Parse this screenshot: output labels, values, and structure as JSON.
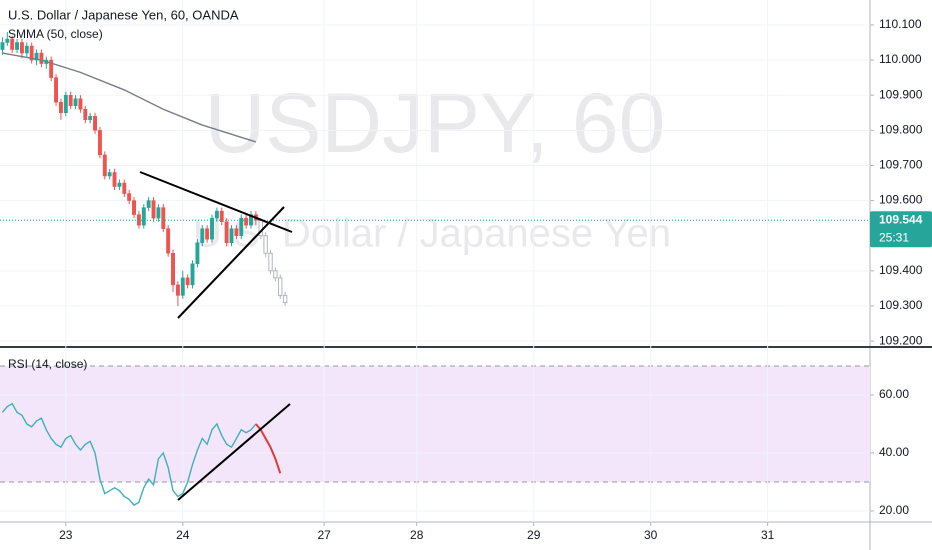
{
  "chart_data": [
    {
      "type": "candlestick",
      "title": "U.S. Dollar / Japanese Yen, 60, OANDA",
      "watermark": "USDJPY, 60",
      "watermark_subtitle": "U.S. Dollar / Japanese Yen",
      "xlim": [
        -0.5,
        178
      ],
      "ylim": [
        109.186,
        110.171
      ],
      "yticks": [
        {
          "value": 110.1,
          "label": "110.100"
        },
        {
          "value": 110.0,
          "label": "110.000"
        },
        {
          "value": 109.9,
          "label": "109.900"
        },
        {
          "value": 109.8,
          "label": "109.800"
        },
        {
          "value": 109.7,
          "label": "109.700"
        },
        {
          "value": 109.6,
          "label": "109.600"
        },
        {
          "value": 109.4,
          "label": "109.400"
        },
        {
          "value": 109.3,
          "label": "109.300"
        },
        {
          "value": 109.2,
          "label": "109.200"
        }
      ],
      "grid": true,
      "color_up": "#26a69a",
      "color_down": "#ef5350",
      "last_price": {
        "value": 109.544,
        "label": "109.544"
      },
      "countdown": "25:31",
      "candles": [
        {
          "open": [
            110.03,
            110.05,
            110.06,
            110.03,
            110.05,
            110.02,
            110.04,
            110.0,
            110.02,
            109.99,
            110.0,
            109.95,
            109.88,
            109.85,
            109.9,
            109.87,
            109.89,
            109.86,
            109.83,
            109.84,
            109.8,
            109.73,
            109.67,
            109.68,
            109.64,
            109.65,
            109.62,
            109.6,
            109.56,
            109.53,
            109.58,
            109.6,
            109.55,
            109.58,
            109.52,
            109.45,
            109.36,
            109.33,
            109.38,
            109.36,
            109.42,
            109.48,
            109.52,
            109.49,
            109.55,
            109.57,
            109.54,
            109.48,
            109.52,
            109.5,
            109.55,
            109.53,
            109.56
          ],
          "high": [
            110.065,
            110.08,
            110.07,
            110.06,
            110.06,
            110.05,
            110.05,
            110.03,
            110.03,
            110.01,
            110.01,
            109.96,
            109.89,
            109.91,
            109.91,
            109.9,
            109.9,
            109.87,
            109.85,
            109.85,
            109.81,
            109.74,
            109.69,
            109.69,
            109.66,
            109.66,
            109.63,
            109.61,
            109.57,
            109.59,
            109.61,
            109.61,
            109.59,
            109.59,
            109.53,
            109.46,
            109.37,
            109.4,
            109.39,
            109.43,
            109.49,
            109.53,
            109.53,
            109.56,
            109.58,
            109.58,
            109.55,
            109.53,
            109.53,
            109.56,
            109.56,
            109.57,
            109.57
          ],
          "low": [
            110.015,
            110.04,
            110.02,
            110.02,
            110.005,
            110.01,
            109.99,
            109.985,
            109.98,
            109.975,
            109.94,
            109.87,
            109.83,
            109.84,
            109.86,
            109.86,
            109.85,
            109.82,
            109.82,
            109.79,
            109.72,
            109.66,
            109.66,
            109.63,
            109.63,
            109.61,
            109.59,
            109.55,
            109.52,
            109.52,
            109.57,
            109.54,
            109.54,
            109.51,
            109.44,
            109.34,
            109.3,
            109.32,
            109.35,
            109.35,
            109.41,
            109.47,
            109.48,
            109.48,
            109.54,
            109.53,
            109.47,
            109.47,
            109.49,
            109.49,
            109.52,
            109.52,
            109.53
          ],
          "close": [
            110.05,
            110.06,
            110.03,
            110.05,
            110.02,
            110.04,
            110.0,
            110.02,
            109.99,
            110.0,
            109.95,
            109.88,
            109.85,
            109.9,
            109.87,
            109.89,
            109.86,
            109.83,
            109.84,
            109.8,
            109.73,
            109.67,
            109.68,
            109.64,
            109.65,
            109.62,
            109.6,
            109.56,
            109.53,
            109.58,
            109.6,
            109.55,
            109.58,
            109.52,
            109.45,
            109.36,
            109.33,
            109.38,
            109.36,
            109.42,
            109.48,
            109.52,
            109.49,
            109.55,
            109.57,
            109.54,
            109.48,
            109.52,
            109.5,
            109.55,
            109.53,
            109.56,
            109.544
          ]
        },
        {
          "color": "#b2b5be",
          "x": [
            53,
            54,
            55,
            56,
            57,
            58
          ],
          "open": [
            109.544,
            109.5,
            109.45,
            109.4,
            109.38,
            109.33
          ],
          "high": [
            109.55,
            109.51,
            109.46,
            109.41,
            109.39,
            109.34
          ],
          "low": [
            109.49,
            109.44,
            109.39,
            109.37,
            109.32,
            109.3
          ],
          "close": [
            109.5,
            109.45,
            109.4,
            109.38,
            109.33,
            109.31
          ]
        }
      ],
      "series": [
        {
          "name": "SMMA (50, close)",
          "color": "#787b86",
          "x": [
            0,
            8,
            16,
            25,
            33,
            41,
            49,
            52
          ],
          "values": [
            110.02,
            110.0,
            109.965,
            109.915,
            109.86,
            109.815,
            109.78,
            109.767
          ]
        }
      ]
    },
    {
      "type": "line",
      "xlim": [
        -0.5,
        178
      ],
      "ylim": [
        16.2,
        76.2
      ],
      "yticks": [
        {
          "value": 60,
          "label": "60.00"
        },
        {
          "value": 40,
          "label": "40.00"
        },
        {
          "value": 20,
          "label": "20.00"
        }
      ],
      "xticks": [
        {
          "value": 13,
          "label": "23"
        },
        {
          "value": 37,
          "label": "24"
        },
        {
          "value": 66,
          "label": "27"
        },
        {
          "value": 85,
          "label": "28"
        },
        {
          "value": 109,
          "label": "29"
        },
        {
          "value": 133,
          "label": "30"
        },
        {
          "value": 157,
          "label": "31"
        }
      ],
      "grid": true,
      "band": [
        30,
        70
      ],
      "band_color": "#f3e6fb",
      "series": [
        {
          "name": "RSI (14, close)",
          "color": "#3fb0bb",
          "values": [
            54,
            56,
            57,
            54,
            53,
            50,
            49,
            51,
            52,
            48,
            45,
            43,
            42,
            45,
            46,
            43,
            41,
            43,
            44,
            40,
            31,
            26,
            27,
            28,
            27,
            25,
            24,
            22,
            23,
            28,
            31,
            29,
            38,
            40,
            35,
            27,
            25,
            26,
            30,
            36,
            41,
            45,
            43,
            48,
            50,
            46,
            43,
            42,
            45,
            48,
            47,
            48,
            50
          ]
        },
        {
          "color": "#e53935",
          "x": [
            52,
            53,
            54,
            55,
            56,
            57
          ],
          "values": [
            50,
            48,
            45,
            42,
            38,
            33
          ]
        }
      ]
    }
  ]
}
